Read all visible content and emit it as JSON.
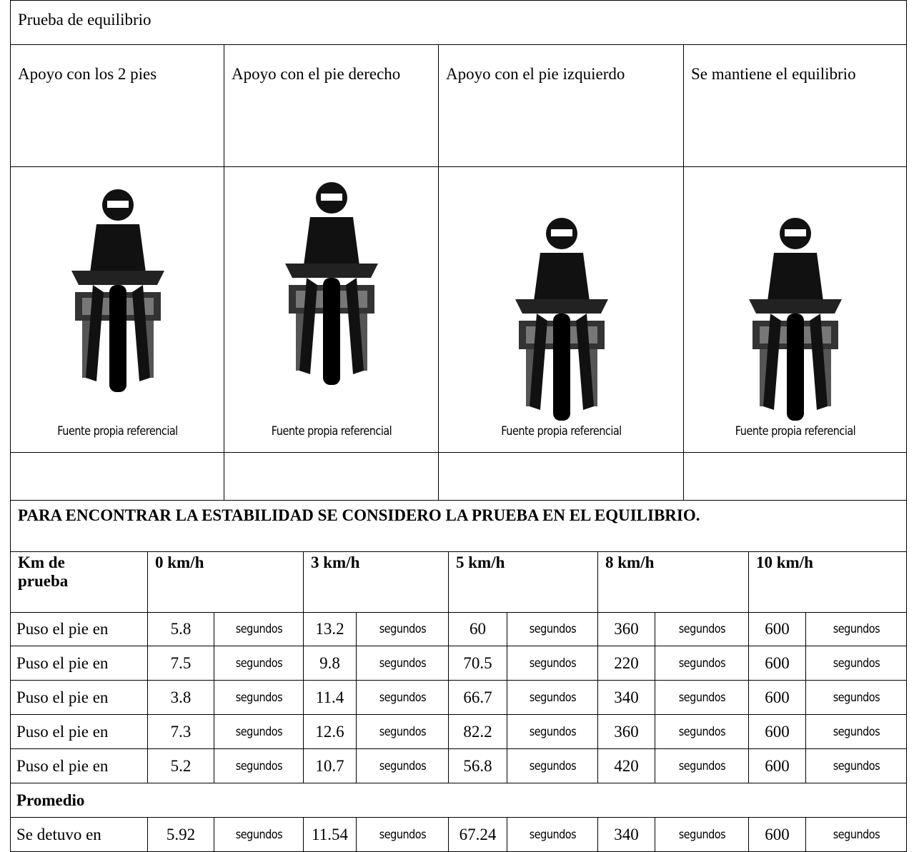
{
  "title": "Prueba de equilibrio",
  "columns": [
    {
      "header": "Apoyo con los 2 pies",
      "caption": "Fuente propia referencial"
    },
    {
      "header": "Apoyo con el pie derecho",
      "caption": "Fuente propia referencial"
    },
    {
      "header": "Apoyo con el pie izquierdo",
      "caption": "Fuente propia referencial"
    },
    {
      "header": "Se mantiene el equilibrio",
      "caption": "Fuente propia referencial"
    }
  ],
  "note": "PARA ENCONTRAR LA ESTABILIDAD SE CONSIDERO LA PRUEBA EN EL EQUILIBRIO.",
  "table": {
    "header": [
      "Km de prueba",
      "0 km/h",
      "3 km/h",
      "5 km/h",
      "8 km/h",
      "10 km/h"
    ],
    "rows": [
      [
        "Puso el pie en",
        5.8,
        "segundos",
        13.2,
        "segundos",
        60,
        "segundos",
        360,
        "segundos",
        600,
        "segundos"
      ],
      [
        "Puso el pie en",
        7.5,
        "segundos",
        9.8,
        "segundos",
        70.5,
        "segundos",
        220,
        "segundos",
        600,
        "segundos"
      ],
      [
        "Puso el pie en",
        3.8,
        "segundos",
        11.4,
        "segundos",
        66.7,
        "segundos",
        340,
        "segundos",
        600,
        "segundos"
      ],
      [
        "Puso el pie en",
        7.3,
        "segundos",
        12.6,
        "segundos",
        82.2,
        "segundos",
        360,
        "segundos",
        600,
        "segundos"
      ],
      [
        "Puso el pie en",
        5.2,
        "segundos",
        10.7,
        "segundos",
        56.8,
        "segundos",
        420,
        "segundos",
        600,
        "segundos"
      ]
    ],
    "average_label": "Promedio",
    "average_row": [
      "Se detuvo en",
      5.92,
      "segundos",
      11.54,
      "segundos",
      67.24,
      "segundos",
      340,
      "segundos",
      600,
      "segundos"
    ]
  }
}
